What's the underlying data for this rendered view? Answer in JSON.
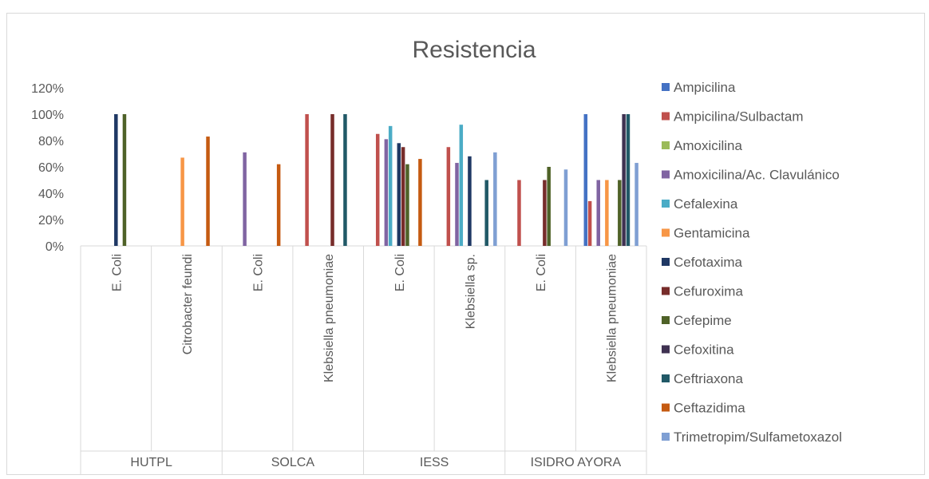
{
  "chart_data": {
    "type": "bar",
    "title": "Resistencia",
    "xlabel": "",
    "ylabel": "",
    "ylim": [
      0,
      1.2
    ],
    "y_ticks": [
      "0%",
      "20%",
      "40%",
      "60%",
      "80%",
      "100%",
      "120%"
    ],
    "grid": false,
    "legend_position": "right",
    "groups": [
      {
        "name": "HUTPL",
        "categories": [
          "E. Coli",
          "Citrobacter feundi"
        ]
      },
      {
        "name": "SOLCA",
        "categories": [
          "E. Coli",
          "Klebsiella pneumoniae"
        ]
      },
      {
        "name": "IESS",
        "categories": [
          "E. Coli",
          "Klebsiella sp."
        ]
      },
      {
        "name": "ISIDRO AYORA",
        "categories": [
          "E. Coli",
          "Klebsiella pneumoniae"
        ]
      }
    ],
    "series": [
      {
        "name": "Ampicilina",
        "color": "#4472C4",
        "values": [
          null,
          null,
          null,
          null,
          null,
          null,
          null,
          1.0
        ]
      },
      {
        "name": "Ampicilina/Sulbactam",
        "color": "#C0504D",
        "values": [
          null,
          null,
          null,
          1.0,
          0.85,
          0.75,
          0.5,
          0.34
        ]
      },
      {
        "name": "Amoxicilina",
        "color": "#9BBB59",
        "values": [
          null,
          null,
          null,
          null,
          null,
          null,
          null,
          null
        ]
      },
      {
        "name": "Amoxicilina/Ac. Clavulánico",
        "color": "#8064A2",
        "values": [
          null,
          null,
          0.71,
          null,
          0.81,
          0.63,
          null,
          0.5
        ]
      },
      {
        "name": "Cefalexina",
        "color": "#4BACC6",
        "values": [
          null,
          null,
          null,
          null,
          0.91,
          0.92,
          null,
          null
        ]
      },
      {
        "name": "Gentamicina",
        "color": "#F79646",
        "values": [
          null,
          0.67,
          null,
          null,
          null,
          null,
          null,
          0.5
        ]
      },
      {
        "name": "Cefotaxima",
        "color": "#1F3864",
        "values": [
          1.0,
          null,
          null,
          null,
          0.78,
          0.68,
          null,
          null
        ]
      },
      {
        "name": "Cefuroxima",
        "color": "#772C2A",
        "values": [
          null,
          null,
          null,
          1.0,
          0.75,
          null,
          0.5,
          null
        ]
      },
      {
        "name": "Cefepime",
        "color": "#4F6228",
        "values": [
          1.0,
          null,
          null,
          null,
          0.62,
          null,
          0.6,
          0.5
        ]
      },
      {
        "name": "Cefoxitina",
        "color": "#3F3151",
        "values": [
          null,
          null,
          null,
          null,
          null,
          null,
          null,
          1.0
        ]
      },
      {
        "name": "Ceftriaxona",
        "color": "#215967",
        "values": [
          null,
          null,
          null,
          1.0,
          null,
          0.5,
          null,
          1.0
        ]
      },
      {
        "name": "Ceftazidima",
        "color": "#C55A11",
        "values": [
          null,
          0.83,
          0.62,
          null,
          0.66,
          null,
          null,
          null
        ]
      },
      {
        "name": "Trimetropim/Sulfametoxazol",
        "color": "#7F9FD3",
        "values": [
          null,
          null,
          null,
          null,
          null,
          0.71,
          0.58,
          0.63
        ]
      }
    ]
  }
}
